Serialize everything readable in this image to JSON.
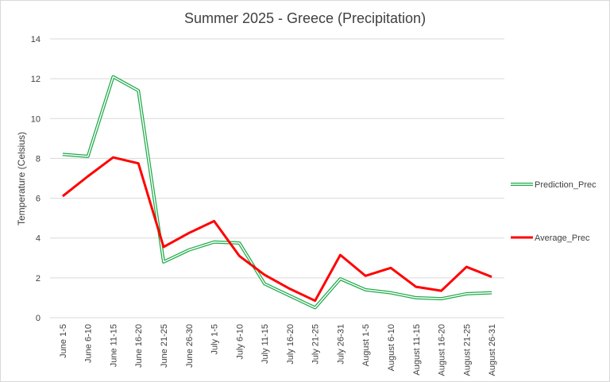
{
  "chart_data": {
    "type": "line",
    "title": "Summer 2025 - Greece (Precipitation)",
    "xlabel": "",
    "ylabel": "Temperature (Celsius)",
    "ylim": [
      0,
      14
    ],
    "yticks": [
      0,
      2,
      4,
      6,
      8,
      10,
      12,
      14
    ],
    "grid": true,
    "legend_position": "right",
    "categories": [
      "June 1-5",
      "June 6-10",
      "June 11-15",
      "June 16-20",
      "June 21-25",
      "June 26-30",
      "July 1-5",
      "July 6-10",
      "July 11-15",
      "July 16-20",
      "July 21-25",
      "July 26-31",
      "August 1-5",
      "August 6-10",
      "August 11-15",
      "August 16-20",
      "August 21-25",
      "August 26-31"
    ],
    "series": [
      {
        "name": "Prediction_Prec",
        "color": "#1faa4a",
        "style": "double",
        "values": [
          8.2,
          8.1,
          12.1,
          11.4,
          2.8,
          3.4,
          3.8,
          3.75,
          1.7,
          1.1,
          0.5,
          1.95,
          1.4,
          1.25,
          1.0,
          0.95,
          1.2,
          1.25
        ]
      },
      {
        "name": "Average_Prec",
        "color": "#ff0000",
        "style": "solid",
        "values": [
          6.1,
          7.1,
          8.05,
          7.75,
          3.55,
          4.25,
          4.85,
          3.1,
          2.15,
          1.45,
          0.85,
          3.15,
          2.1,
          2.5,
          1.55,
          1.35,
          2.55,
          2.05
        ]
      }
    ]
  }
}
